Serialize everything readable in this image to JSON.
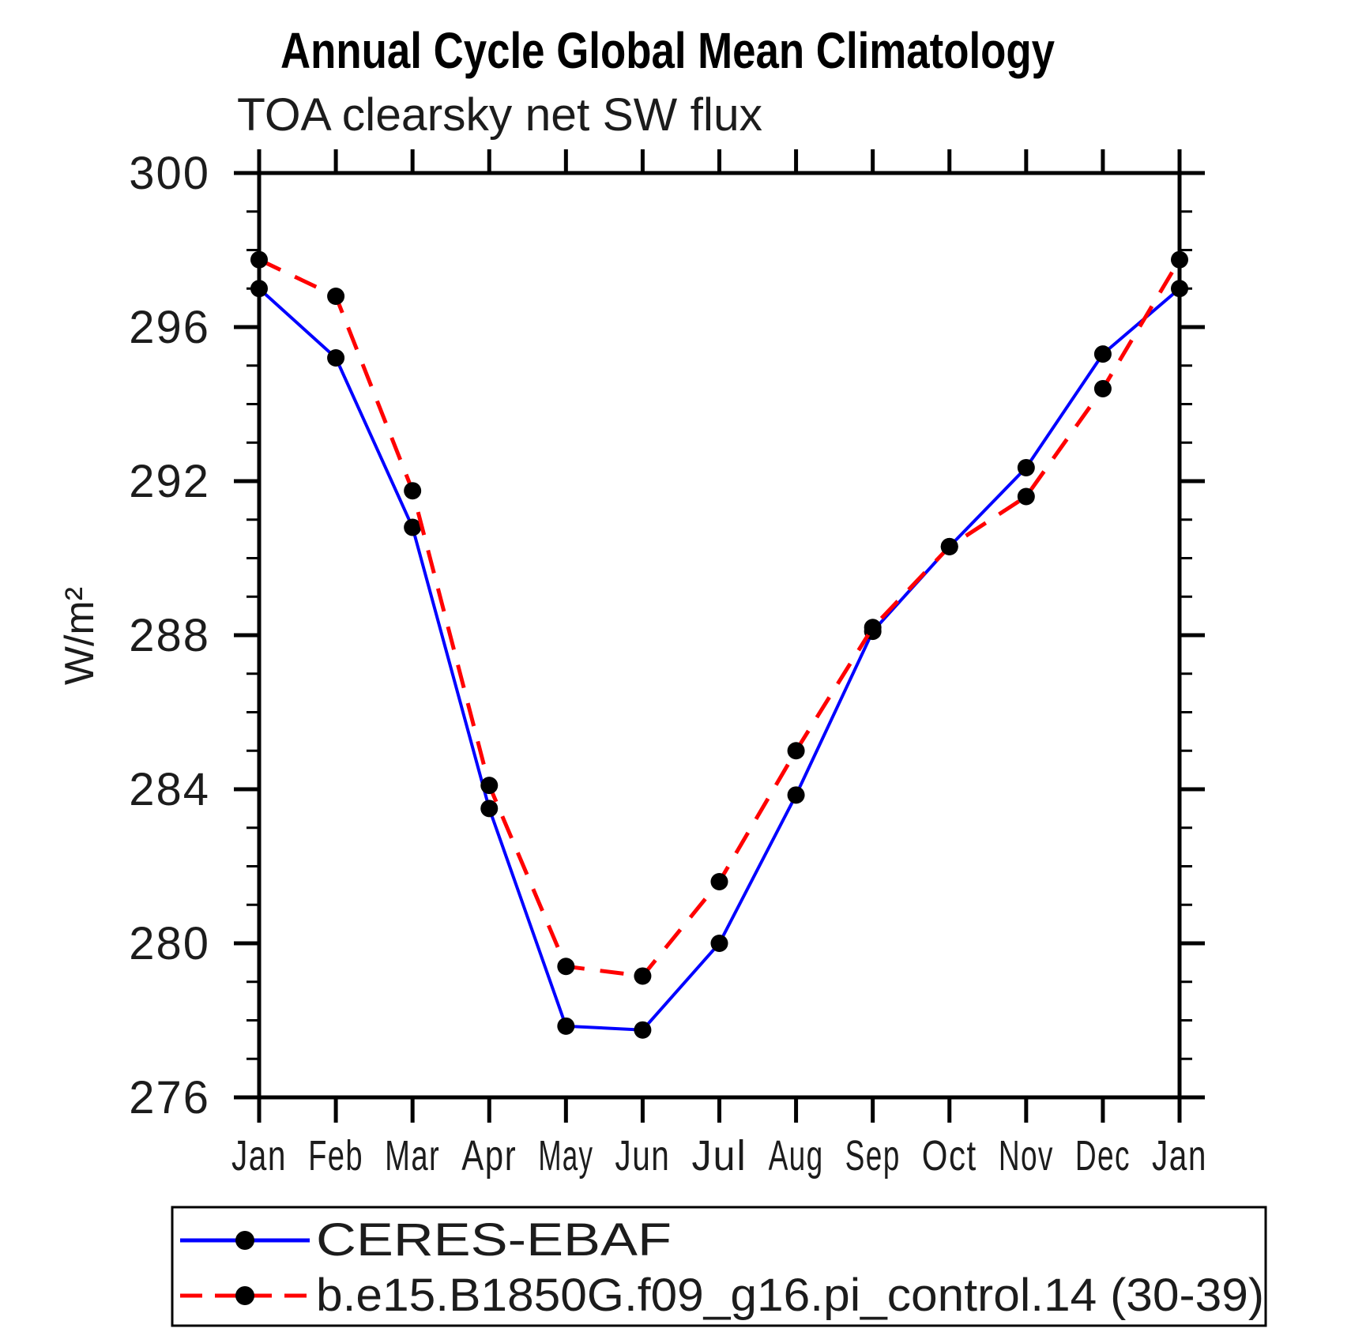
{
  "figure": {
    "title": "Annual Cycle Global Mean Climatology",
    "subtitle": "TOA clearsky net SW flux"
  },
  "chart_data": {
    "type": "line",
    "title": "Annual Cycle Global Mean Climatology",
    "subtitle": "TOA clearsky net SW flux",
    "xlabel": "",
    "ylabel": "W/m²",
    "categories": [
      "Jan",
      "Feb",
      "Mar",
      "Apr",
      "May",
      "Jun",
      "Jul",
      "Aug",
      "Sep",
      "Oct",
      "Nov",
      "Dec",
      "Jan"
    ],
    "ylim": [
      276,
      300
    ],
    "yticks_major": [
      276,
      280,
      284,
      288,
      292,
      296,
      300
    ],
    "ytick_minor_step": 1,
    "grid": false,
    "legend_position": "bottom-left-box",
    "marker": {
      "shape": "circle",
      "color": "#000000"
    },
    "series": [
      {
        "name": "CERES-EBAF",
        "color": "#0000ff",
        "line_style": "solid",
        "values": [
          297.0,
          295.2,
          290.8,
          283.5,
          277.85,
          277.75,
          280.0,
          283.85,
          288.1,
          290.3,
          292.35,
          295.3,
          297.0
        ]
      },
      {
        "name": "b.e15.B1850G.f09_g16.pi_control.14 (30-39)",
        "color": "#ff0000",
        "line_style": "dashed",
        "values": [
          297.75,
          296.8,
          291.75,
          284.1,
          279.4,
          279.15,
          281.6,
          285.0,
          288.2,
          290.3,
          291.6,
          294.4,
          297.75
        ]
      }
    ]
  }
}
